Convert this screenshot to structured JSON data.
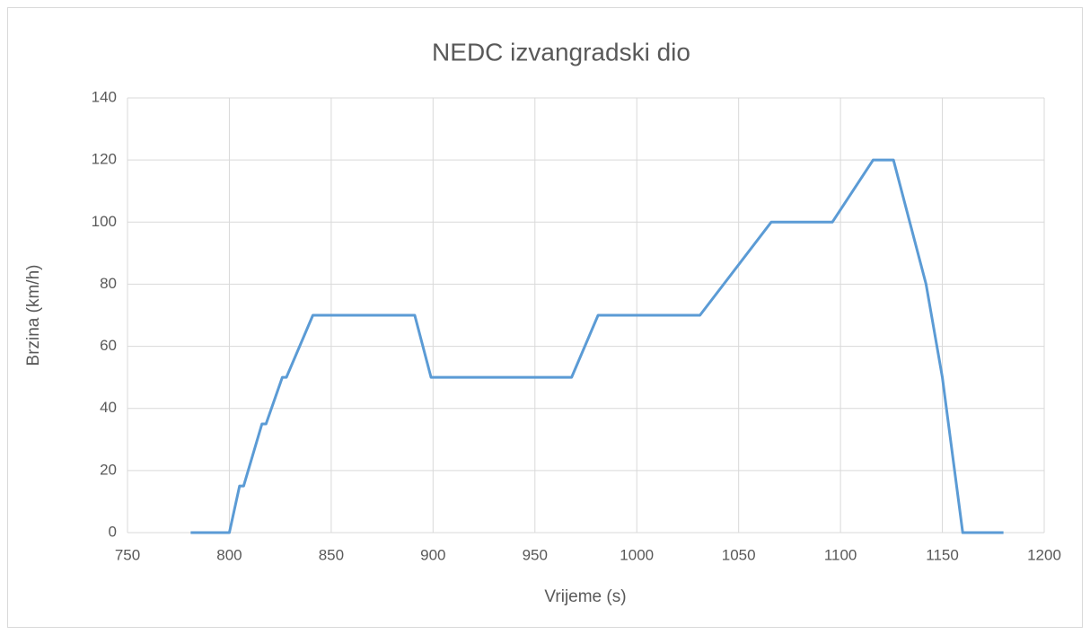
{
  "chart_data": {
    "type": "line",
    "title": "NEDC izvangradski dio",
    "x_label": "Vrijeme (s)",
    "y_label": "Brzina (km/h)",
    "x": [
      781,
      800,
      805,
      807,
      816,
      818,
      826,
      828,
      841,
      891,
      899,
      968,
      981,
      1031,
      1066,
      1096,
      1116,
      1126,
      1142,
      1150,
      1160,
      1180
    ],
    "series": [
      {
        "name": "Brzina",
        "color": "#5b9bd5",
        "values": [
          0,
          0,
          15,
          15,
          35,
          35,
          50,
          50,
          70,
          70,
          50,
          50,
          70,
          70,
          100,
          100,
          120,
          120,
          80,
          50,
          0,
          0
        ]
      }
    ],
    "xlim": [
      750,
      1200
    ],
    "xticks": [
      750,
      800,
      850,
      900,
      950,
      1000,
      1050,
      1100,
      1150,
      1200
    ],
    "ylim": [
      0,
      140
    ],
    "yticks": [
      0,
      20,
      40,
      60,
      80,
      100,
      120,
      140
    ],
    "grid": true
  }
}
